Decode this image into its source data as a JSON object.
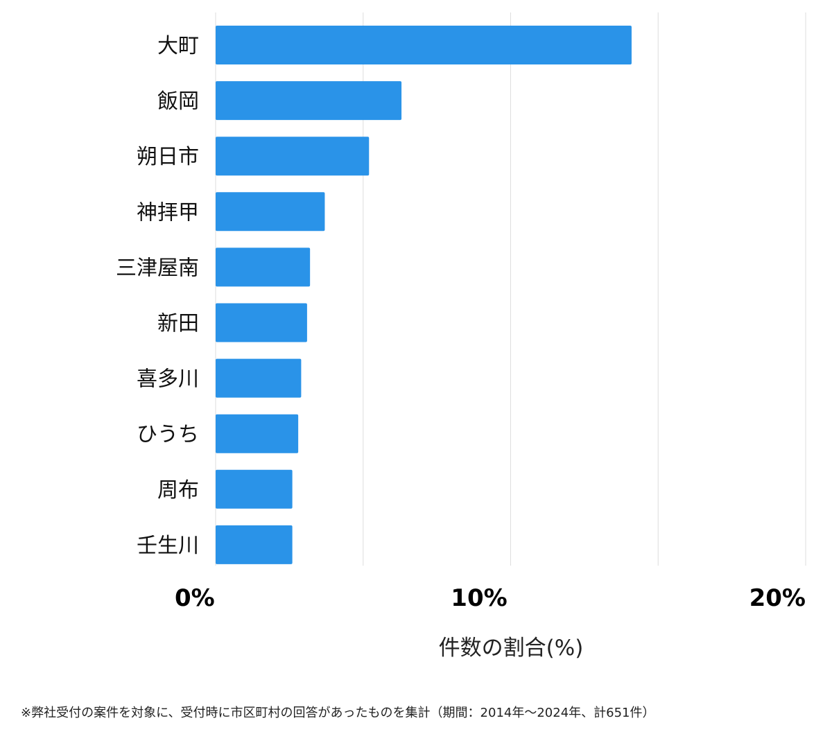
{
  "chart_data": {
    "type": "bar",
    "orientation": "horizontal",
    "categories": [
      "大町",
      "飯岡",
      "朔日市",
      "神拝甲",
      "三津屋南",
      "新田",
      "喜多川",
      "ひうち",
      "周布",
      "壬生川"
    ],
    "values": [
      14.1,
      6.3,
      5.2,
      3.7,
      3.2,
      3.1,
      2.9,
      2.8,
      2.6,
      2.6
    ],
    "xlim": [
      0,
      20
    ],
    "ticks": [
      {
        "value": 0,
        "label": "0%"
      },
      {
        "value": 10,
        "label": "10%"
      },
      {
        "value": 20,
        "label": "20%"
      }
    ],
    "gridlines": [
      0,
      5,
      10,
      15,
      20
    ],
    "xlabel": "件数の割合(%)",
    "ylabel": "",
    "title": "",
    "grid": true,
    "bar_color": "#2a93e8",
    "gridline_color": "#dddddd"
  },
  "footnote": "※弊社受付の案件を対象に、受付時に市区町村の回答があったものを集計（期間：2014年〜2024年、計651件）"
}
